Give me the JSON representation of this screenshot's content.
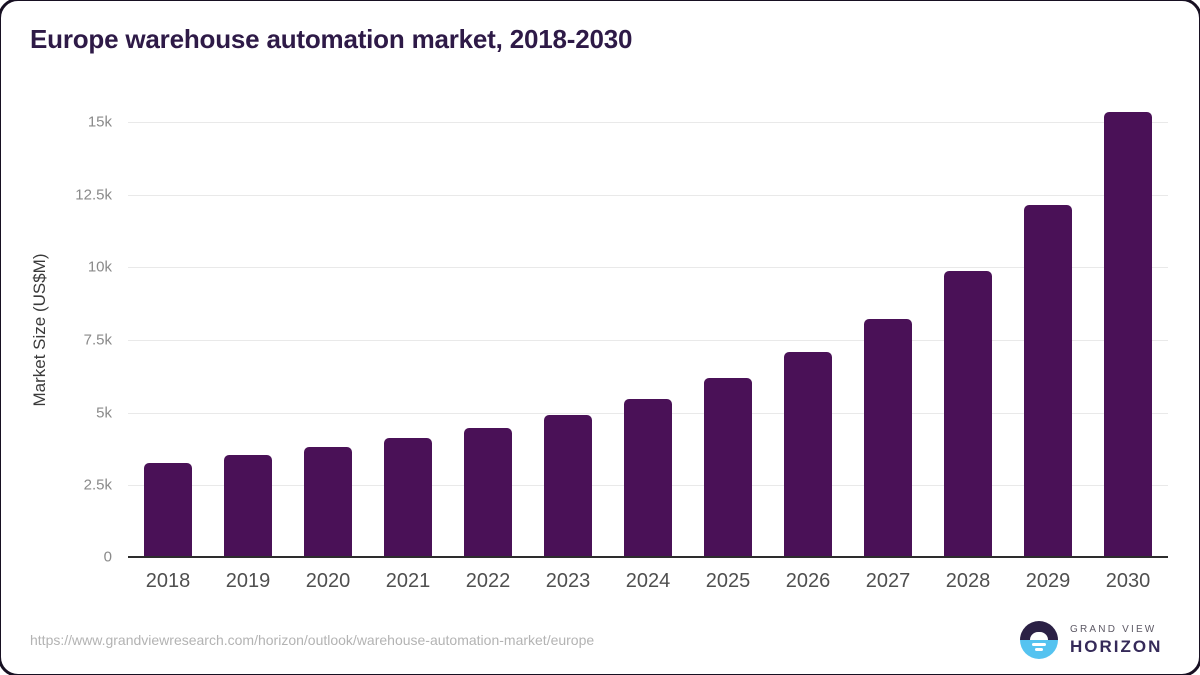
{
  "page": {
    "source_url": "https://www.grandviewresearch.com/horizon/outlook/warehouse-automation-market/europe",
    "logo": {
      "brand_top": "GRAND VIEW",
      "brand_bottom": "HORIZON"
    }
  },
  "colors": {
    "bar": "#4a1157",
    "title": "#2e1a47",
    "axis_line": "#2d2d2d",
    "gridline": "#e9e9e9",
    "y_tick_label": "#8a8a8a",
    "x_tick_label": "#4f4f4f",
    "url_text": "#b3b3b3",
    "logo_purple": "#2b2145",
    "logo_blue": "#55c3f0"
  },
  "chart_data": {
    "type": "bar",
    "title": "Europe warehouse automation market, 2018-2030",
    "xlabel": "",
    "ylabel": "Market Size (US$M)",
    "categories": [
      "2018",
      "2019",
      "2020",
      "2021",
      "2022",
      "2023",
      "2024",
      "2025",
      "2026",
      "2027",
      "2028",
      "2029",
      "2030"
    ],
    "values": [
      3250,
      3500,
      3800,
      4100,
      4450,
      4900,
      5450,
      6150,
      7050,
      8200,
      9850,
      12100,
      15300
    ],
    "unit": "US$M",
    "ylim": [
      0,
      15000
    ],
    "yticks": [
      0,
      2500,
      5000,
      7500,
      10000,
      12500,
      15000
    ],
    "ytick_labels": [
      "0",
      "2.5k",
      "5k",
      "7.5k",
      "10k",
      "12.5k",
      "15k"
    ],
    "grid": true,
    "legend": false,
    "bar_color": "#4a1157"
  }
}
